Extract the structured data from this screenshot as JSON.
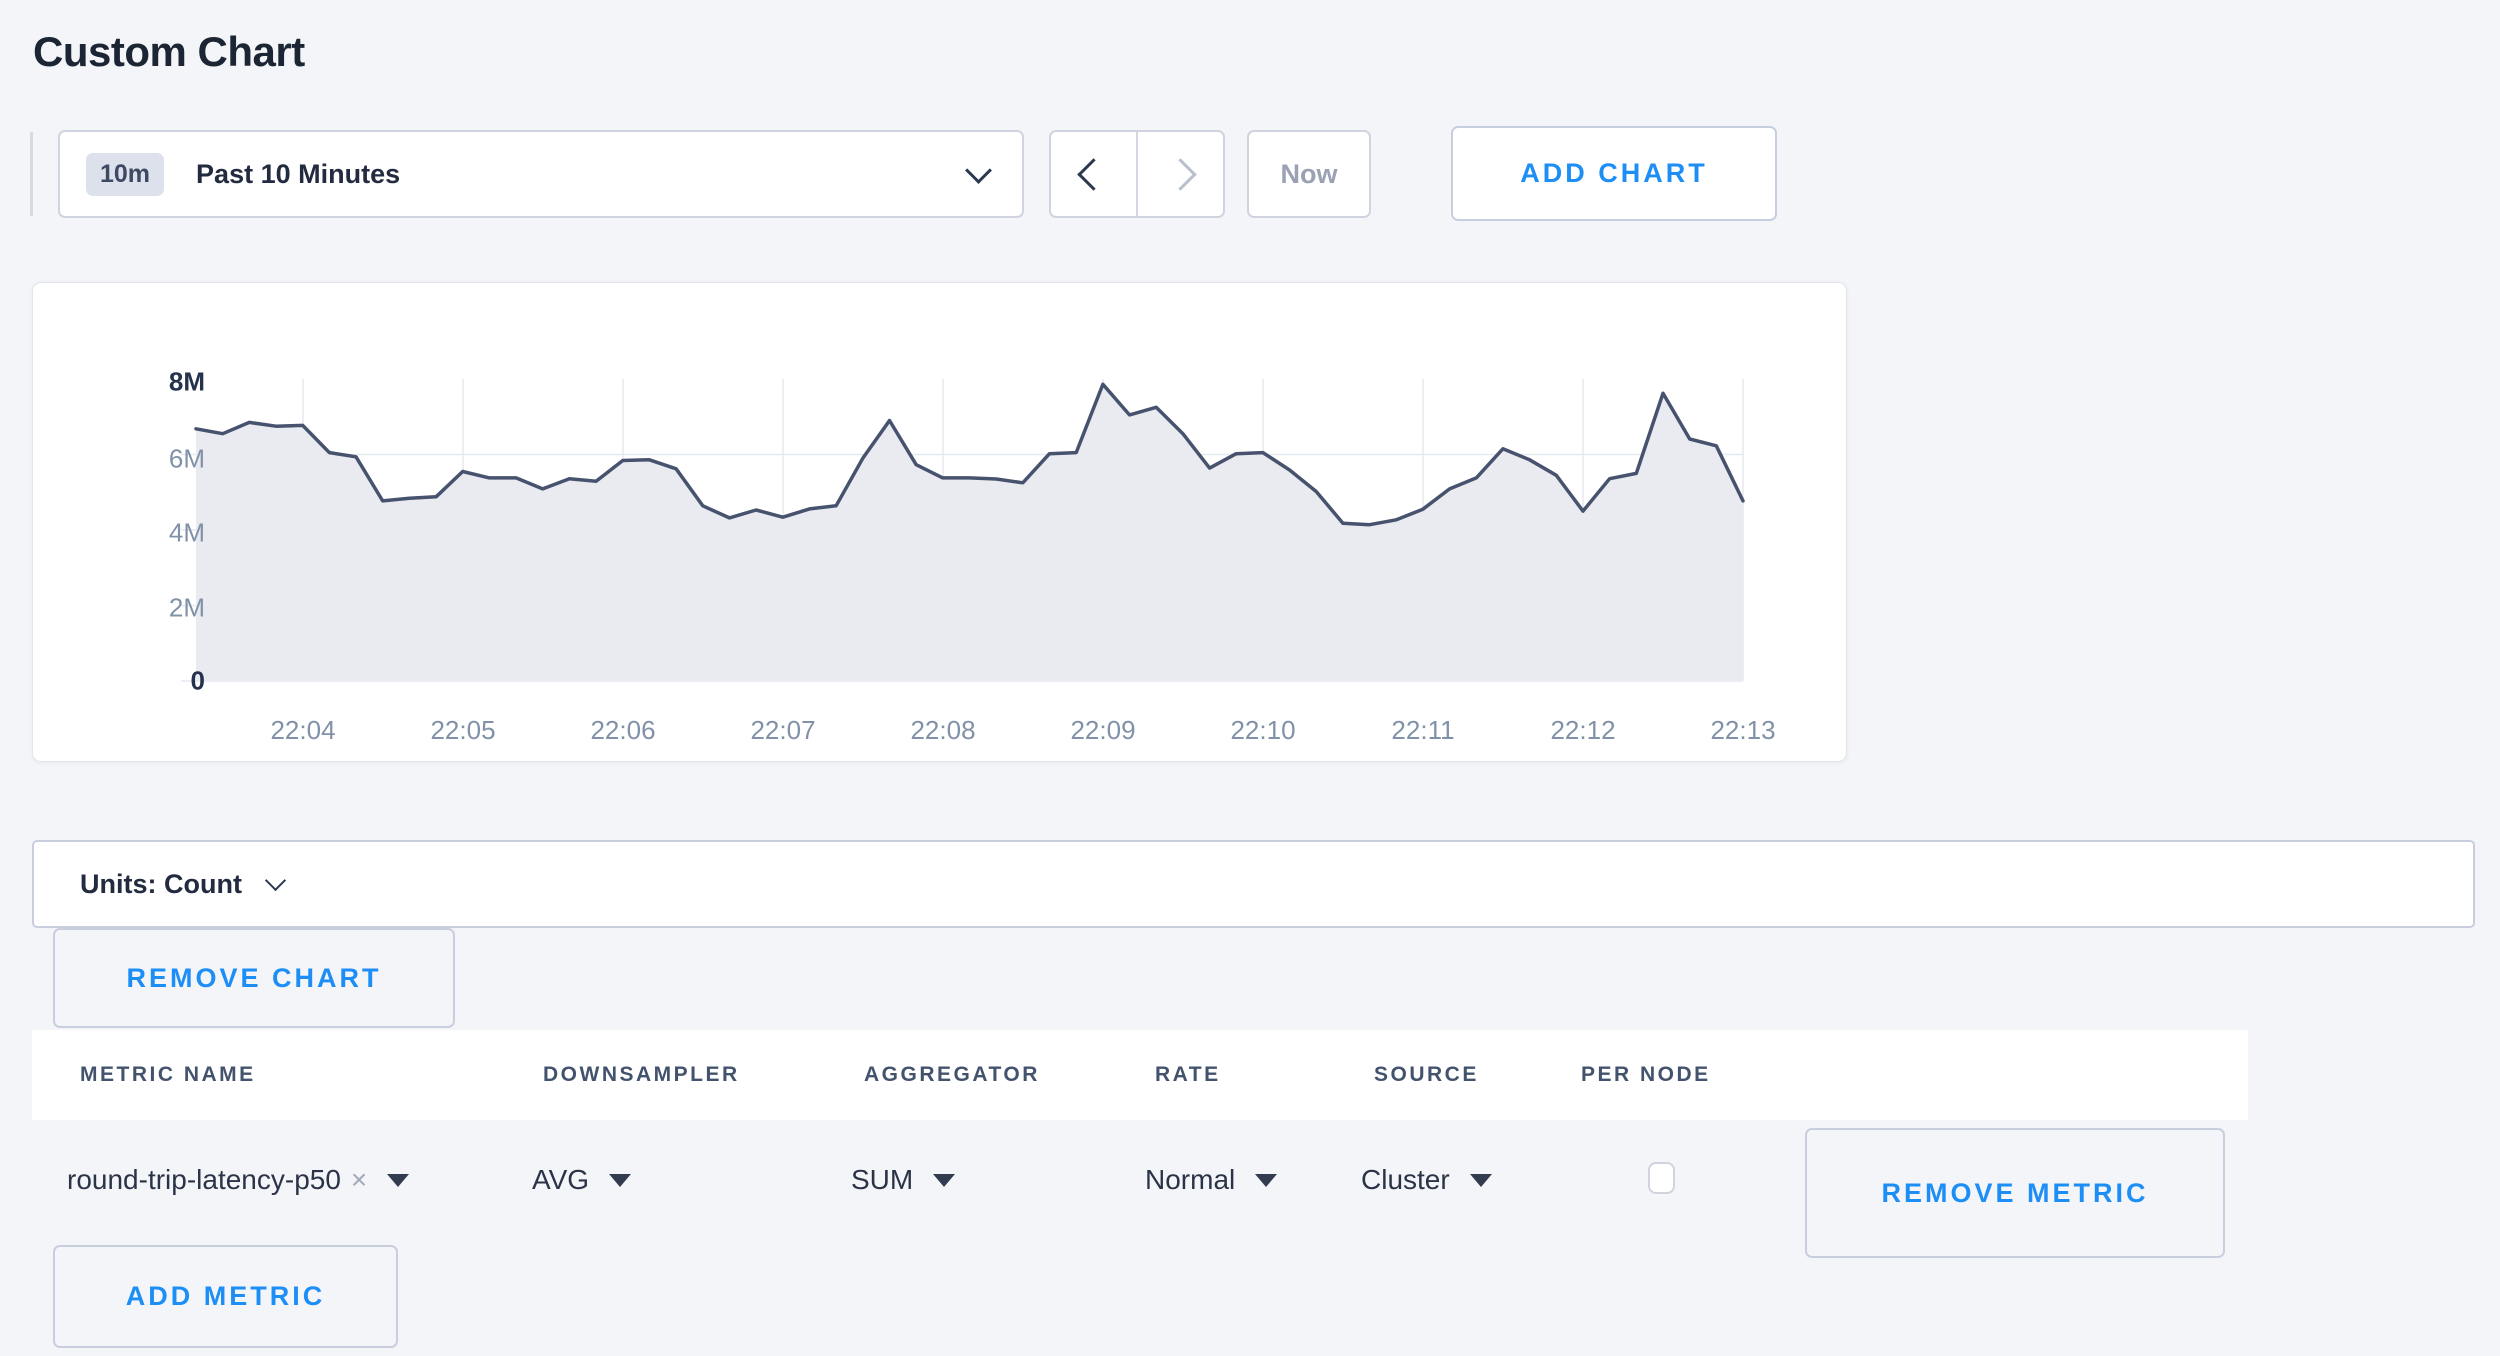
{
  "page": {
    "title": "Custom Chart"
  },
  "toolbar": {
    "time_window_badge": "10m",
    "time_window_label": "Past 10 Minutes",
    "now_label": "Now",
    "add_chart_label": "ADD CHART"
  },
  "units_bar": {
    "label": "Units: Count"
  },
  "buttons": {
    "remove_chart": "REMOVE CHART",
    "remove_metric": "REMOVE METRIC",
    "add_metric": "ADD METRIC"
  },
  "metrics_table": {
    "headers": [
      "METRIC NAME",
      "DOWNSAMPLER",
      "AGGREGATOR",
      "RATE",
      "SOURCE",
      "PER NODE"
    ],
    "rows": [
      {
        "metric_name": "round-trip-latency-p50",
        "remove_tag": "×",
        "downsampler": "AVG",
        "aggregator": "SUM",
        "rate": "Normal",
        "source": "Cluster",
        "per_node_checked": false
      }
    ]
  },
  "colors": {
    "accent_blue": "#1d8ef5",
    "line": "#47536e",
    "fill": "#e9ebf1",
    "grid": "#e5e9f0",
    "page_bg": "#f4f5f9"
  },
  "chart_data": {
    "type": "area",
    "title": "",
    "xlabel": "",
    "ylabel": "",
    "unit": "count",
    "ylim": [
      0,
      8000000
    ],
    "grid": true,
    "legend": "none",
    "series": [
      {
        "name": "round-trip-latency-p50",
        "start_time": "22:03:20",
        "interval_seconds": 10,
        "values_millions": [
          6.68,
          6.55,
          6.85,
          6.75,
          6.77,
          6.05,
          5.94,
          4.77,
          4.84,
          4.88,
          5.55,
          5.38,
          5.38,
          5.09,
          5.36,
          5.29,
          5.84,
          5.86,
          5.62,
          4.64,
          4.32,
          4.53,
          4.34,
          4.56,
          4.64,
          5.9,
          6.9,
          5.73,
          5.38,
          5.38,
          5.35,
          5.25,
          6.02,
          6.05,
          7.86,
          7.05,
          7.25,
          6.55,
          5.64,
          6.02,
          6.05,
          5.59,
          5.02,
          4.18,
          4.14,
          4.27,
          4.55,
          5.09,
          5.38,
          6.15,
          5.86,
          5.45,
          4.5,
          5.36,
          5.5,
          7.62,
          6.41,
          6.23,
          4.77
        ]
      }
    ],
    "x_tick_labels": [
      "22:04",
      "22:05",
      "22:06",
      "22:07",
      "22:08",
      "22:09",
      "22:10",
      "22:11",
      "22:12",
      "22:13"
    ],
    "y_tick_labels": [
      "0",
      "2M",
      "4M",
      "6M",
      "8M"
    ]
  }
}
